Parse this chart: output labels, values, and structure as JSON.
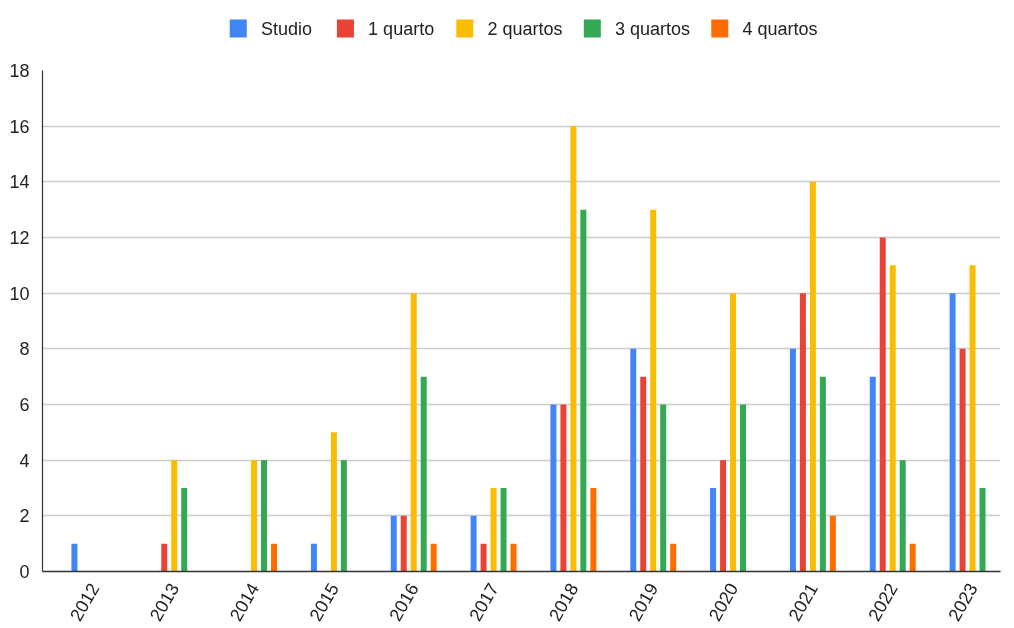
{
  "chart_data": {
    "type": "bar",
    "categories": [
      "2012",
      "2013",
      "2014",
      "2015",
      "2016",
      "2017",
      "2018",
      "2019",
      "2020",
      "2021",
      "2022",
      "2023"
    ],
    "series": [
      {
        "name": "Studio",
        "color": "#4285f4",
        "values": [
          1,
          0,
          0,
          1,
          2,
          2,
          6,
          8,
          3,
          8,
          7,
          10
        ]
      },
      {
        "name": "1 quarto",
        "color": "#ea4335",
        "values": [
          0,
          1,
          0,
          0,
          2,
          1,
          6,
          7,
          4,
          10,
          12,
          8
        ]
      },
      {
        "name": "2 quartos",
        "color": "#fbbc04",
        "values": [
          0,
          4,
          4,
          5,
          10,
          3,
          16,
          13,
          10,
          14,
          11,
          11
        ]
      },
      {
        "name": "3 quartos",
        "color": "#34a853",
        "values": [
          0,
          3,
          4,
          4,
          7,
          3,
          13,
          6,
          6,
          7,
          4,
          3
        ]
      },
      {
        "name": "4 quartos",
        "color": "#ff6d01",
        "values": [
          0,
          0,
          1,
          0,
          1,
          1,
          3,
          1,
          0,
          2,
          1,
          0
        ]
      }
    ],
    "ylim": [
      0,
      18
    ],
    "yticks": [
      0,
      2,
      4,
      6,
      8,
      10,
      12,
      14,
      16,
      18
    ],
    "grid": "y",
    "legend": "top"
  }
}
